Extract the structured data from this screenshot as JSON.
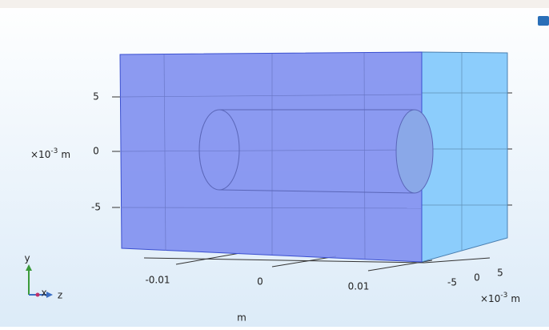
{
  "y_axis": {
    "ticks": [
      "5",
      "0",
      "-5"
    ],
    "unit": {
      "base": "×10",
      "exponent": "-3",
      "unit": "m"
    }
  },
  "x_axis": {
    "ticks": [
      "-0.01",
      "0",
      "0.01"
    ],
    "unit": "m"
  },
  "z_axis": {
    "ticks": [
      "-5",
      "0",
      "5"
    ],
    "unit": {
      "base": "×10",
      "exponent": "-3",
      "unit": "m"
    }
  },
  "triad": {
    "y": "y",
    "x": "x",
    "z": "z"
  }
}
